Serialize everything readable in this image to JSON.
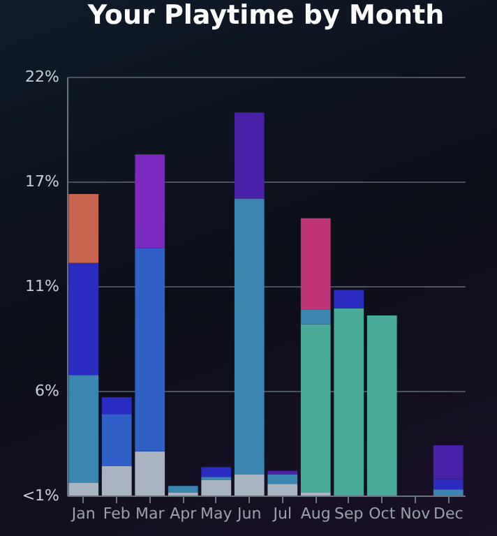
{
  "chart_data": {
    "type": "bar",
    "title": "Your Playtime by Month",
    "stacked": true,
    "grid": "y",
    "categories": [
      "Jan",
      "Feb",
      "Mar",
      "Apr",
      "May",
      "Jun",
      "Jul",
      "Aug",
      "Sep",
      "Oct",
      "Nov",
      "Dec"
    ],
    "ylim": [
      0,
      22
    ],
    "yticks": [
      {
        "value": 0,
        "label": "<1%"
      },
      {
        "value": 5.5,
        "label": "6%"
      },
      {
        "value": 11,
        "label": "11%"
      },
      {
        "value": 16.5,
        "label": "17%"
      },
      {
        "value": 22,
        "label": "22%"
      }
    ],
    "series": [
      {
        "color": "#a9b4c2",
        "values": [
          0.66,
          1.54,
          2.32,
          0.15,
          0.81,
          1.1,
          0.61,
          0.17,
          null,
          null,
          null,
          null
        ]
      },
      {
        "color": "#4aaa9a",
        "values": [
          null,
          null,
          null,
          null,
          null,
          null,
          null,
          8.83,
          9.83,
          9.46,
          null,
          null
        ]
      },
      {
        "color": "#3a86b0",
        "values": [
          5.67,
          null,
          null,
          0.35,
          0.17,
          14.5,
          0.49,
          0.78,
          null,
          null,
          null,
          0.32
        ]
      },
      {
        "color": "#2f5fc7",
        "values": [
          null,
          2.74,
          10.68,
          null,
          null,
          null,
          null,
          null,
          null,
          null,
          null,
          null
        ]
      },
      {
        "color": "#2a2bc0",
        "values": [
          5.89,
          0.88,
          null,
          null,
          0.51,
          null,
          null,
          null,
          0.97,
          null,
          null,
          0.54
        ]
      },
      {
        "color": "#4a20a8",
        "values": [
          null,
          null,
          null,
          null,
          null,
          4.52,
          0.2,
          null,
          null,
          null,
          null,
          1.78
        ]
      },
      {
        "color": "#7a28c0",
        "values": [
          null,
          null,
          4.92,
          null,
          null,
          null,
          null,
          null,
          null,
          null,
          null,
          null
        ]
      },
      {
        "color": "#c8644e",
        "values": [
          3.62,
          null,
          null,
          null,
          null,
          null,
          null,
          null,
          null,
          null,
          null,
          null
        ]
      },
      {
        "color": "#c03478",
        "values": [
          null,
          null,
          null,
          null,
          null,
          null,
          null,
          4.79,
          null,
          null,
          null,
          null
        ]
      }
    ]
  }
}
